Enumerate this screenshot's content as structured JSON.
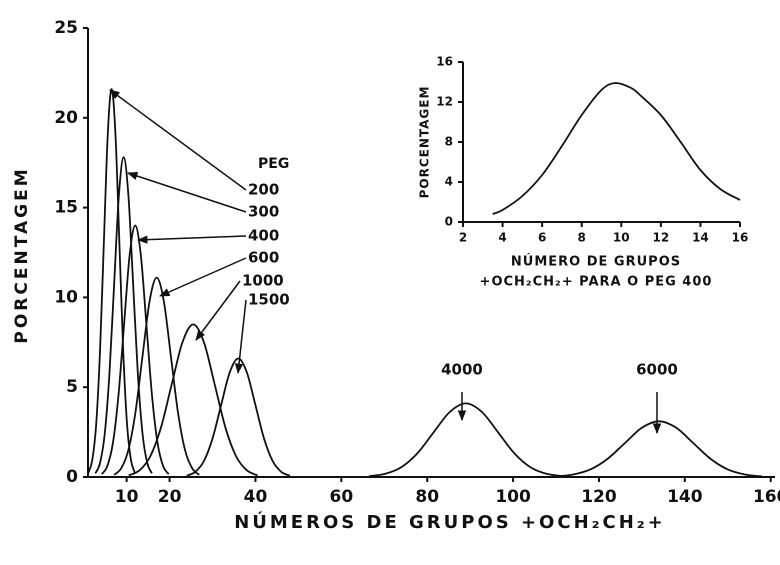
{
  "chart_data": [
    {
      "type": "line",
      "x_label": "NÚMEROS DE GRUPOS +OCH₂CH₂+",
      "y_label": "PORCENTAGEM",
      "legend_title": "PEG",
      "xlim": [
        1,
        161
      ],
      "xticks": [
        10,
        20,
        40,
        60,
        80,
        100,
        120,
        140,
        160
      ],
      "ylim": [
        0,
        25
      ],
      "yticks": [
        0,
        5,
        10,
        15,
        20,
        25
      ],
      "series": [
        {
          "name": "200",
          "color": "#111111",
          "x": [
            1.1,
            2,
            2.9,
            3.8,
            4.7,
            5.6,
            6.5,
            7.4,
            8.3,
            9.2,
            10.1,
            11,
            11.9
          ],
          "values": [
            0.24,
            0.95,
            2.92,
            7.01,
            13.1,
            19.06,
            21.6,
            19.06,
            13.1,
            7.01,
            2.92,
            0.95,
            0.24
          ]
        },
        {
          "name": "300",
          "color": "#111111",
          "x": [
            2.7,
            3.8,
            4.9,
            6,
            7.1,
            8.2,
            9.3,
            10.4,
            11.5,
            12.6,
            13.7,
            14.8,
            15.9
          ],
          "values": [
            0.2,
            0.78,
            2.41,
            5.78,
            10.8,
            15.71,
            17.8,
            15.71,
            10.8,
            5.78,
            2.41,
            0.78,
            0.2
          ]
        },
        {
          "name": "400",
          "color": "#111111",
          "x": [
            4.2,
            5.5,
            6.8,
            8.1,
            9.4,
            10.7,
            12,
            13.3,
            14.6,
            15.9,
            17.2,
            18.5,
            19.8
          ],
          "values": [
            0.16,
            0.61,
            1.89,
            4.55,
            8.49,
            12.36,
            14,
            12.36,
            8.49,
            4.55,
            1.89,
            0.61,
            0.16
          ]
        },
        {
          "name": "600",
          "color": "#111111",
          "x": [
            7.1,
            8.75,
            10.4,
            12.05,
            13.7,
            15.35,
            17,
            18.65,
            20.3,
            21.95,
            23.6,
            25.25,
            26.9
          ],
          "values": [
            0.12,
            0.49,
            1.5,
            3.6,
            6.73,
            9.8,
            11.1,
            9.8,
            6.73,
            3.6,
            1.5,
            0.49,
            0.12
          ]
        },
        {
          "name": "1000",
          "color": "#111111",
          "x": [
            10.5,
            13,
            15.5,
            18,
            20.5,
            23,
            25.5,
            28,
            30.5,
            33,
            35.5,
            38,
            40.5
          ],
          "values": [
            0.09,
            0.37,
            1.15,
            2.76,
            5.16,
            7.5,
            8.5,
            7.5,
            5.16,
            2.76,
            1.15,
            0.37,
            0.09
          ]
        },
        {
          "name": "1500",
          "color": "#111111",
          "x": [
            24,
            26,
            28,
            30,
            32,
            34,
            36,
            38,
            40,
            42,
            44,
            46,
            48
          ],
          "values": [
            0.07,
            0.29,
            0.89,
            2.14,
            4.0,
            5.82,
            6.6,
            5.82,
            4.0,
            2.14,
            0.89,
            0.29,
            0.07
          ]
        },
        {
          "name": "4000",
          "color": "#111111",
          "x": [
            66.5,
            70.25,
            74,
            77.75,
            81.5,
            85.25,
            89,
            92.75,
            96.5,
            100.25,
            104,
            107.75,
            111.5
          ],
          "values": [
            0.05,
            0.18,
            0.55,
            1.33,
            2.49,
            3.62,
            4.1,
            3.62,
            2.49,
            1.33,
            0.55,
            0.18,
            0.05
          ]
        },
        {
          "name": "6000",
          "color": "#111111",
          "x": [
            110,
            114,
            118,
            122,
            126,
            130,
            134,
            138,
            142,
            146,
            150,
            154,
            158
          ],
          "values": [
            0.03,
            0.14,
            0.42,
            1.01,
            1.88,
            2.74,
            3.1,
            2.74,
            1.88,
            1.01,
            0.42,
            0.14,
            0.03
          ]
        }
      ]
    },
    {
      "type": "line",
      "x_label": [
        "NÚMERO DE GRUPOS",
        "+OCH₂CH₂+ PARA O PEG 400"
      ],
      "y_label": "PORCENTAGEM",
      "xlim": [
        2,
        16
      ],
      "xticks": [
        2,
        4,
        6,
        8,
        10,
        12,
        14,
        16
      ],
      "ylim": [
        0,
        16
      ],
      "yticks": [
        0,
        4,
        8,
        12,
        16
      ],
      "series": [
        {
          "color": "#111111",
          "x": [
            3.5,
            4,
            5,
            6,
            7,
            8,
            9,
            9.7,
            10.5,
            11,
            12,
            13,
            14,
            15,
            16
          ],
          "values": [
            0.8,
            1.2,
            2.6,
            4.7,
            7.6,
            10.7,
            13.2,
            13.9,
            13.4,
            12.6,
            10.7,
            8,
            5.2,
            3.3,
            2.2
          ]
        }
      ]
    }
  ]
}
